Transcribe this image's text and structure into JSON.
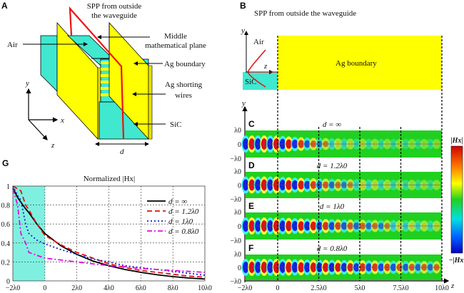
{
  "panelA": {
    "label": "A",
    "spp_line1": "SPP from outside",
    "spp_line2": "the waveguide",
    "middle_line1": "Middle",
    "middle_line2": "mathematical plane",
    "air": "Air",
    "ag_boundary": "Ag boundary",
    "ag_wires_line1": "Ag shorting",
    "ag_wires_line2": "wires",
    "sic": "SiC",
    "axis_y": "y",
    "axis_x": "x",
    "axis_z": "z",
    "width_label": "d",
    "colors": {
      "air": "#40e8d0",
      "ag": "#ffff00",
      "spp": "#ee1111"
    }
  },
  "panelB": {
    "label": "B",
    "title": "SPP from outside the waveguide",
    "inset_y": "y",
    "inset_z": "z",
    "air": "Air",
    "sic": "SiC",
    "ag_boundary": "Ag boundary"
  },
  "fieldmaps": {
    "axis_y": "y",
    "axis_z": "z",
    "y_ticks": [
      "λ0",
      "0",
      "−λ0"
    ],
    "z_ticks": [
      "−2λ0",
      "0",
      "2.5λ0",
      "5λ0",
      "7.5λ0",
      "10λ0"
    ],
    "colorbar_max": "|Hx|",
    "colorbar_min": "−|Hx|",
    "rows": [
      {
        "label": "C",
        "caption": "d = ∞"
      },
      {
        "label": "D",
        "caption": "d = 1.2λ0"
      },
      {
        "label": "E",
        "caption": "d = 1λ0"
      },
      {
        "label": "F",
        "caption": "d = 0.8λ0"
      }
    ]
  },
  "chart_data": {
    "type": "line",
    "panel_label": "G",
    "title": "Normalized |Hx|",
    "xlabel": "",
    "ylabel": "",
    "xlim": [
      -2,
      10
    ],
    "ylim": [
      0,
      1
    ],
    "x_ticks": [
      "−2λ0",
      "0",
      "2λ0",
      "4λ0",
      "6λ0",
      "8λ0",
      "10λ0"
    ],
    "y_ticks": [
      "0",
      "0.2",
      "0.4",
      "0.6",
      "0.8",
      "1"
    ],
    "grid": true,
    "legend": "top-right",
    "shaded_region": [
      -2,
      0
    ],
    "shaded_color": "#7ff0e0",
    "x": [
      -2,
      -1.7,
      -1.5,
      -1.2,
      -1,
      -0.5,
      0,
      1,
      2,
      3,
      4,
      5,
      6,
      7,
      8,
      9,
      10
    ],
    "series": [
      {
        "name": "d = ∞",
        "color": "#000000",
        "style": "solid",
        "values": [
          0.98,
          0.88,
          0.83,
          0.76,
          0.72,
          0.6,
          0.5,
          0.37,
          0.28,
          0.21,
          0.16,
          0.12,
          0.09,
          0.065,
          0.045,
          0.03,
          0.02
        ]
      },
      {
        "name": "d = 1.2λ0",
        "color": "#e01010",
        "style": "dashed",
        "values": [
          1.0,
          0.97,
          0.95,
          0.8,
          0.75,
          0.6,
          0.48,
          0.38,
          0.3,
          0.24,
          0.18,
          0.14,
          0.11,
          0.09,
          0.07,
          0.05,
          0.04
        ]
      },
      {
        "name": "d = 1λ0",
        "color": "#1020d0",
        "style": "dotted",
        "values": [
          1.0,
          0.9,
          0.85,
          0.6,
          0.5,
          0.43,
          0.39,
          0.33,
          0.28,
          0.23,
          0.2,
          0.16,
          0.14,
          0.12,
          0.1,
          0.08,
          0.06
        ]
      },
      {
        "name": "d = 0.8λ0",
        "color": "#e010e0",
        "style": "dashdot",
        "values": [
          0.97,
          0.8,
          0.5,
          0.4,
          0.3,
          0.27,
          0.24,
          0.22,
          0.2,
          0.18,
          0.16,
          0.15,
          0.13,
          0.12,
          0.11,
          0.1,
          0.09
        ]
      }
    ]
  }
}
